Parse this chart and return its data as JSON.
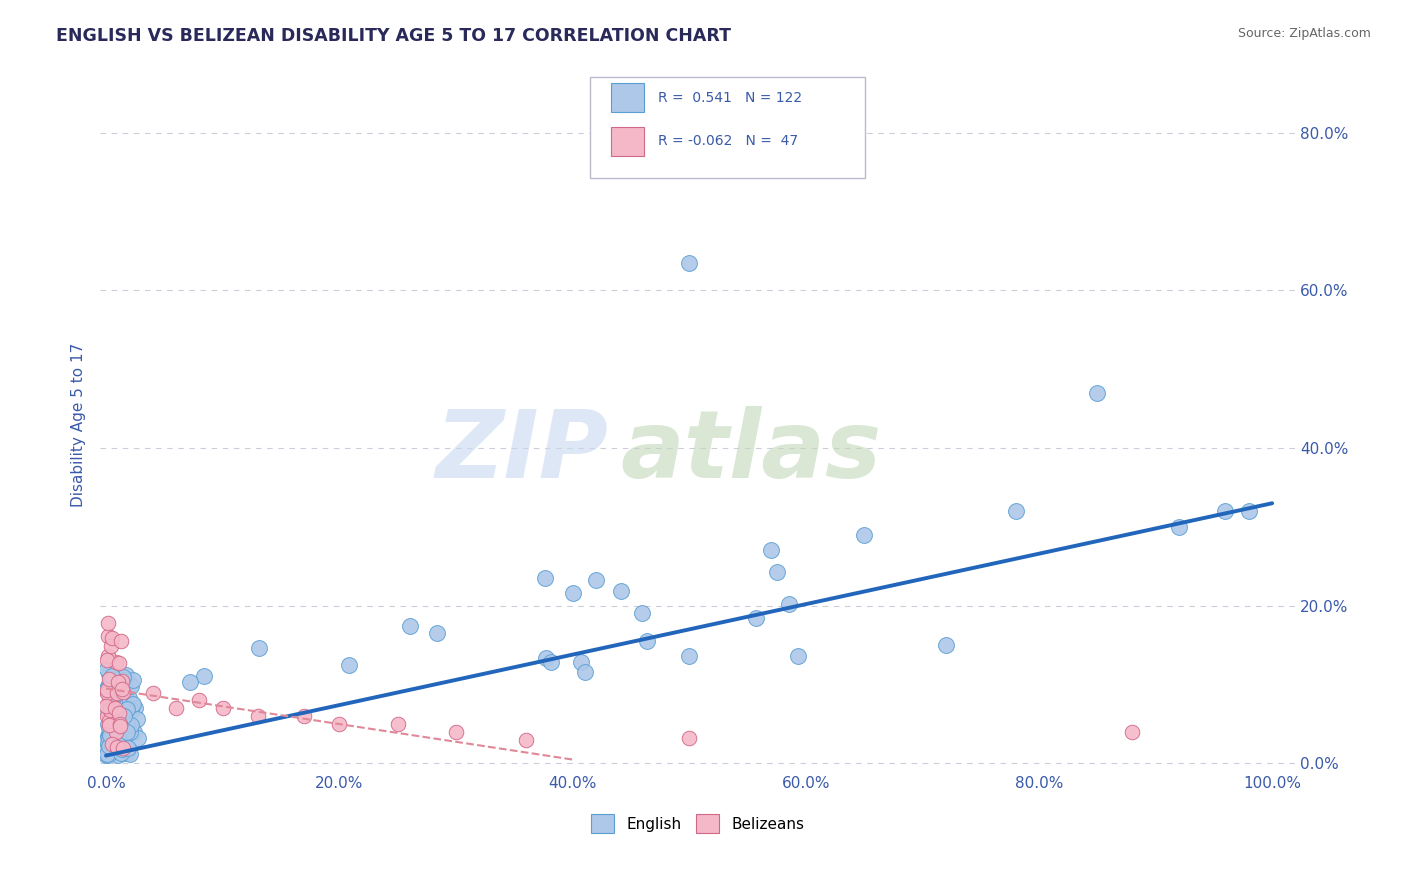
{
  "title": "ENGLISH VS BELIZEAN DISABILITY AGE 5 TO 17 CORRELATION CHART",
  "source_text": "Source: ZipAtlas.com",
  "ylabel": "Disability Age 5 to 17",
  "legend_r_english": "0.541",
  "legend_n_english": "122",
  "legend_r_belizean": "-0.062",
  "legend_n_belizean": "47",
  "english_color": "#adc8e8",
  "english_edge": "#5a9fd4",
  "belizean_color": "#f5b8c8",
  "belizean_edge": "#d06888",
  "trend_english_color": "#2266bb",
  "trend_belizean_color": "#e08898",
  "title_color": "#2a2a5a",
  "source_color": "#666666",
  "tick_color": "#3a5aaa",
  "grid_color": "#ccccdd",
  "background_color": "#ffffff",
  "watermark_zip_color": "#c8d8f0",
  "watermark_atlas_color": "#c0d8b8"
}
